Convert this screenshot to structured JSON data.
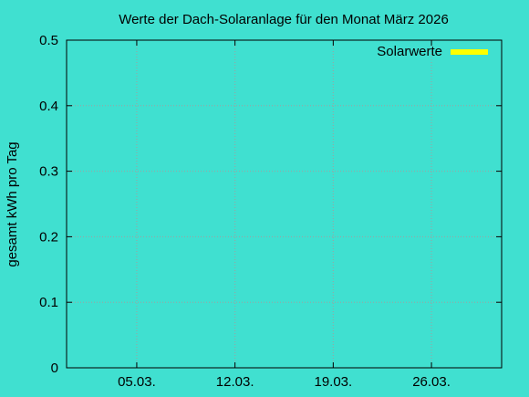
{
  "chart_data": {
    "type": "bar",
    "title": "Werte der Dach-Solaranlage für den Monat März 2026",
    "xlabel": "",
    "ylabel": "gesamt kWh pro Tag",
    "x_tick_labels": [
      "05.03.",
      "12.03.",
      "19.03.",
      "26.03."
    ],
    "x_tick_days": [
      5,
      12,
      19,
      26
    ],
    "xlim_days": [
      0,
      31
    ],
    "ylim": [
      0,
      0.5
    ],
    "y_ticks": [
      0,
      0.1,
      0.2,
      0.3,
      0.4,
      0.5
    ],
    "y_tick_labels": [
      "0",
      "0.1",
      "0.2",
      "0.3",
      "0.4",
      "0.5"
    ],
    "grid": true,
    "legend_position": "top-right",
    "series": [
      {
        "name": "Solarwerte",
        "color": "#ffff00",
        "values": []
      }
    ],
    "colors": {
      "background": "#40e0d0",
      "axis": "#000000",
      "grid": "#a0a0a0"
    }
  }
}
